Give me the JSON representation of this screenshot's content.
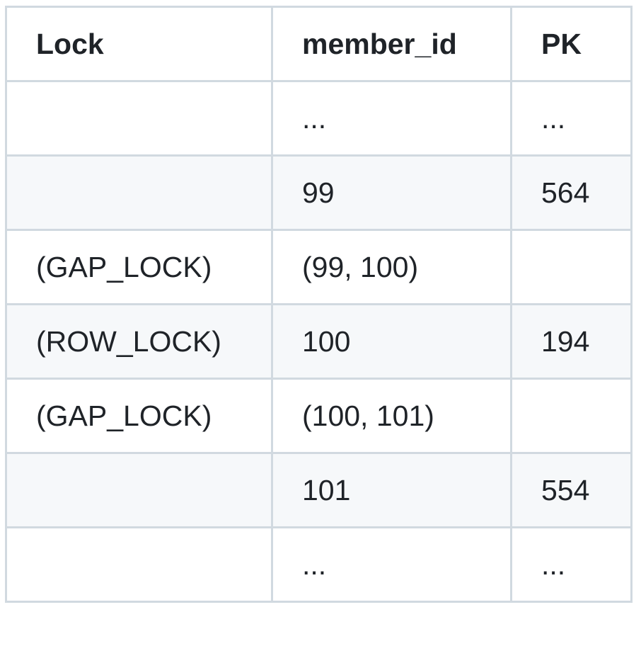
{
  "table": {
    "headers": [
      "Lock",
      "member_id",
      "PK"
    ],
    "rows": [
      [
        "",
        "...",
        "..."
      ],
      [
        "",
        "99",
        "564"
      ],
      [
        "(GAP_LOCK)",
        "(99, 100)",
        ""
      ],
      [
        "(ROW_LOCK)",
        "100",
        "194"
      ],
      [
        "(GAP_LOCK)",
        "(100, 101)",
        ""
      ],
      [
        "",
        "101",
        "554"
      ],
      [
        "",
        "...",
        "..."
      ]
    ]
  },
  "colors": {
    "border": "#d1d9e0",
    "stripe": "#f6f8fa",
    "text": "#1f2328"
  }
}
